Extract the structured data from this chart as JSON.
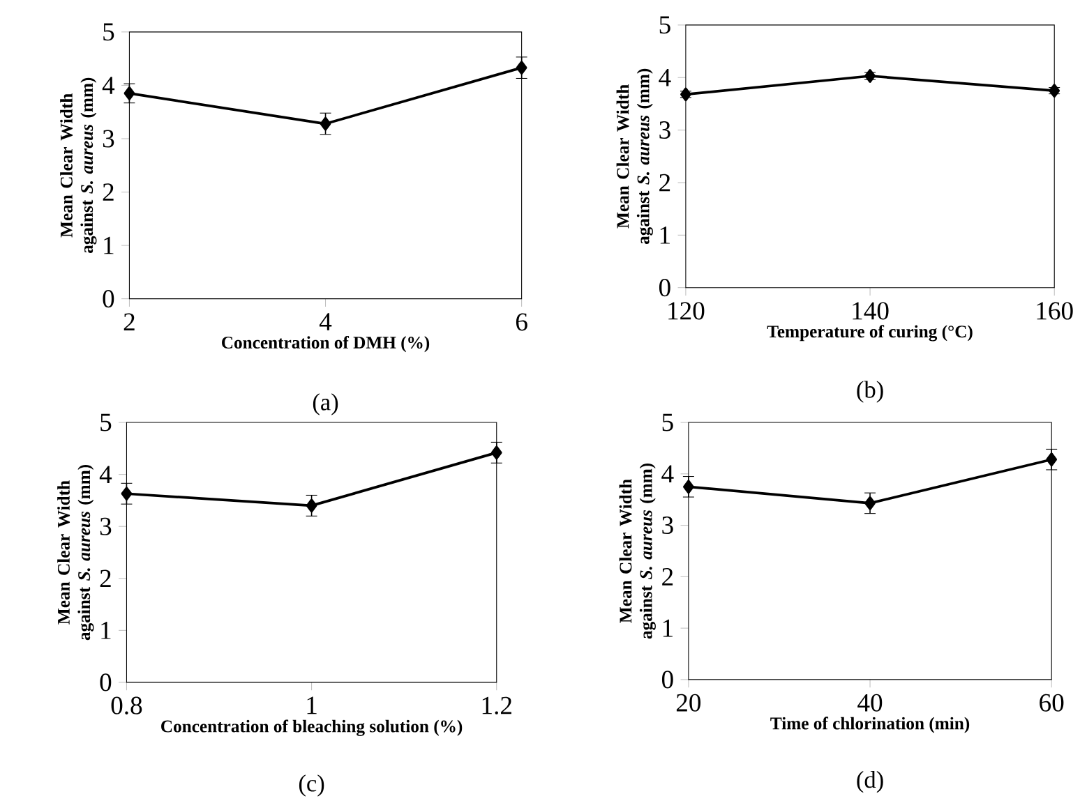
{
  "chart_data": [
    {
      "type": "line",
      "xlabel": "Concentration of DMH (%)",
      "ylabel": "Mean Clear Width against *S. aureus* (mm)",
      "annotations": [
        "(a)"
      ],
      "x": [
        2,
        4,
        6
      ],
      "values": [
        3.85,
        3.28,
        4.33
      ],
      "errors": [
        0.18,
        0.2,
        0.2
      ],
      "color": "#000000",
      "marker": "diamond",
      "xlim": [
        2,
        6
      ],
      "ylim": [
        0,
        5
      ],
      "xticks": [
        2,
        4,
        6
      ],
      "yticks": [
        0,
        1,
        2,
        3,
        4,
        5
      ]
    },
    {
      "type": "line",
      "xlabel": "Temperature of  curing (°C)",
      "ylabel": "Mean Clear Width against *S. aureus* (mm)",
      "annotations": [
        "(b)"
      ],
      "x": [
        120,
        140,
        160
      ],
      "values": [
        3.68,
        4.03,
        3.75
      ],
      "errors": [
        0.06,
        0.07,
        0.06
      ],
      "color": "#000000",
      "marker": "diamond",
      "xlim": [
        120,
        160
      ],
      "ylim": [
        0,
        5
      ],
      "xticks": [
        120,
        140,
        160
      ],
      "yticks": [
        0,
        1,
        2,
        3,
        4,
        5
      ]
    },
    {
      "type": "line",
      "xlabel": "Concentration of bleaching solution (%)",
      "ylabel": "Mean Clear Width against *S. aureus* (mm)",
      "annotations": [
        "(c)"
      ],
      "x": [
        0.8,
        1,
        1.2
      ],
      "values": [
        3.63,
        3.4,
        4.42
      ],
      "errors": [
        0.2,
        0.2,
        0.2
      ],
      "color": "#000000",
      "marker": "diamond",
      "xlim": [
        0.8,
        1.2
      ],
      "ylim": [
        0,
        5
      ],
      "xticks": [
        0.8,
        1,
        1.2
      ],
      "yticks": [
        0,
        1,
        2,
        3,
        4,
        5
      ]
    },
    {
      "type": "line",
      "xlabel": "Time of chlorination (min)",
      "ylabel": "Mean Clear Width against *S. aureus* (mm)",
      "annotations": [
        "(d)"
      ],
      "x": [
        20,
        40,
        60
      ],
      "values": [
        3.75,
        3.43,
        4.28
      ],
      "errors": [
        0.2,
        0.2,
        0.2
      ],
      "color": "#000000",
      "marker": "diamond",
      "xlim": [
        20,
        60
      ],
      "ylim": [
        0,
        5
      ],
      "xticks": [
        20,
        40,
        60
      ],
      "yticks": [
        0,
        1,
        2,
        3,
        4,
        5
      ]
    }
  ]
}
